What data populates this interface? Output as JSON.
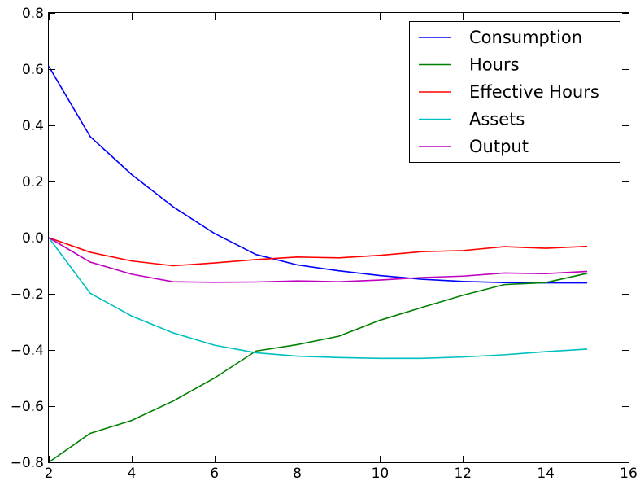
{
  "chart_data": {
    "type": "line",
    "title": "",
    "xlabel": "",
    "ylabel": "",
    "xlim": [
      2,
      16
    ],
    "ylim": [
      -0.8,
      0.8
    ],
    "xticks": [
      2,
      4,
      6,
      8,
      10,
      12,
      14,
      16
    ],
    "yticks": [
      -0.8,
      -0.6,
      -0.4,
      -0.2,
      0.0,
      0.2,
      0.4,
      0.6,
      0.8
    ],
    "xtick_labels": [
      "2",
      "4",
      "6",
      "8",
      "10",
      "12",
      "14",
      "16"
    ],
    "ytick_labels": [
      "−0.8",
      "−0.6",
      "−0.4",
      "−0.2",
      "0.0",
      "0.2",
      "0.4",
      "0.6",
      "0.8"
    ],
    "grid": false,
    "legend_position": "top-right",
    "x": [
      2,
      3,
      4,
      5,
      6,
      7,
      8,
      9,
      10,
      11,
      12,
      13,
      14,
      15
    ],
    "series": [
      {
        "name": "Consumption",
        "color": "#0000ff",
        "values": [
          0.61,
          0.36,
          0.225,
          0.11,
          0.015,
          -0.06,
          -0.097,
          -0.118,
          -0.135,
          -0.148,
          -0.156,
          -0.16,
          -0.161,
          -0.161
        ]
      },
      {
        "name": "Hours",
        "color": "#008000",
        "values": [
          -0.8,
          -0.697,
          -0.651,
          -0.582,
          -0.5,
          -0.404,
          -0.381,
          -0.351,
          -0.294,
          -0.249,
          -0.205,
          -0.167,
          -0.16,
          -0.127
        ]
      },
      {
        "name": "Effective Hours",
        "color": "#ff0000",
        "values": [
          0.0,
          -0.052,
          -0.083,
          -0.1,
          -0.09,
          -0.078,
          -0.069,
          -0.072,
          -0.063,
          -0.05,
          -0.046,
          -0.032,
          -0.038,
          -0.031
        ]
      },
      {
        "name": "Assets",
        "color": "#00bfbf",
        "values": [
          0.0,
          -0.198,
          -0.279,
          -0.339,
          -0.383,
          -0.41,
          -0.422,
          -0.427,
          -0.43,
          -0.43,
          -0.425,
          -0.417,
          -0.406,
          -0.397
        ]
      },
      {
        "name": "Output",
        "color": "#bf00bf",
        "values": [
          0.0,
          -0.087,
          -0.13,
          -0.157,
          -0.159,
          -0.158,
          -0.154,
          -0.157,
          -0.151,
          -0.142,
          -0.137,
          -0.126,
          -0.128,
          -0.12
        ]
      }
    ]
  }
}
